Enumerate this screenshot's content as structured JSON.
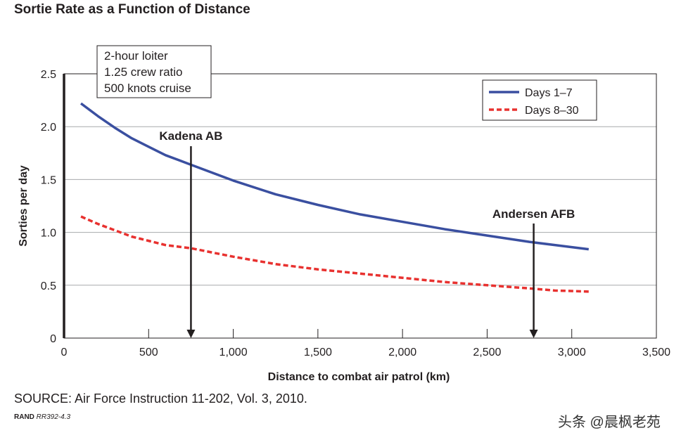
{
  "chart_data": {
    "type": "line",
    "title": "Sortie Rate as a Function of Distance",
    "xlabel": "Distance to combat air patrol (km)",
    "ylabel": "Sorties per day",
    "xlim": [
      0,
      3500
    ],
    "ylim": [
      0,
      2.5
    ],
    "xticks": [
      "0",
      "500",
      "1,000",
      "1,500",
      "2,000",
      "2,500",
      "3,000",
      "3,500"
    ],
    "yticks": [
      "0",
      "0.5",
      "1.0",
      "1.5",
      "2.0",
      "2.5"
    ],
    "grid": "horizontal",
    "legend_position": "top-right",
    "colors": {
      "days_1_7": "#3a4fa0",
      "days_8_30": "#e8312f"
    },
    "series": [
      {
        "name": "Days 1–7",
        "style": "solid",
        "x": [
          100,
          200,
          300,
          400,
          500,
          600,
          750,
          1000,
          1250,
          1500,
          1750,
          2000,
          2250,
          2500,
          2750,
          2900,
          3100
        ],
        "values": [
          2.22,
          2.1,
          1.99,
          1.89,
          1.81,
          1.73,
          1.64,
          1.49,
          1.36,
          1.26,
          1.17,
          1.1,
          1.03,
          0.97,
          0.91,
          0.88,
          0.84
        ]
      },
      {
        "name": "Days 8–30",
        "style": "dashed",
        "x": [
          100,
          200,
          300,
          400,
          500,
          600,
          750,
          1000,
          1250,
          1500,
          1750,
          2000,
          2250,
          2500,
          2750,
          2900,
          3100
        ],
        "values": [
          1.15,
          1.08,
          1.02,
          0.96,
          0.92,
          0.88,
          0.85,
          0.77,
          0.7,
          0.65,
          0.61,
          0.57,
          0.53,
          0.5,
          0.47,
          0.45,
          0.44
        ]
      }
    ],
    "annotations": [
      {
        "label": "Kadena AB",
        "x": 750
      },
      {
        "label": "Andersen AFB",
        "x": 2775
      }
    ],
    "info_box": [
      "2-hour loiter",
      "1.25 crew ratio",
      "500 knots cruise"
    ]
  },
  "source_text": "SOURCE: Air Force Instruction 11-202, Vol. 3, 2010.",
  "figure_id": {
    "org": "RAND",
    "code": "RR392-4.3"
  },
  "watermark": "头条 @晨枫老苑"
}
